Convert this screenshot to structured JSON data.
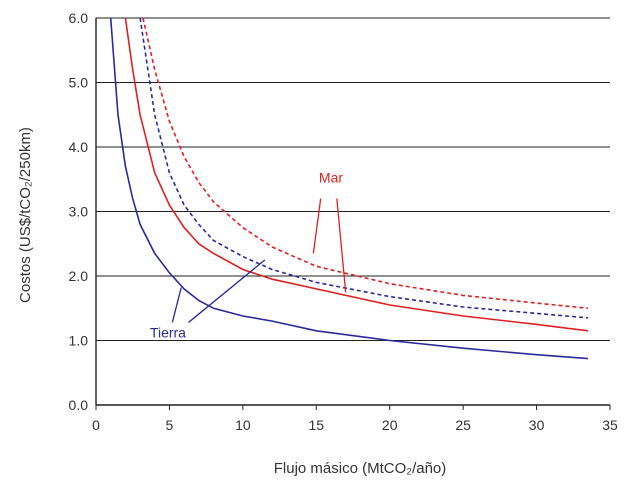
{
  "chart_data": {
    "type": "line",
    "title": "",
    "xlabel": "Flujo másico (MtCO₂/año)",
    "ylabel": "Costos (US$/tCO₂/250km)",
    "xlim": [
      0,
      35
    ],
    "ylim": [
      0,
      6.0
    ],
    "x_ticks": [
      "0",
      "5",
      "10",
      "15",
      "20",
      "25",
      "30",
      "35"
    ],
    "y_ticks": [
      "0.0",
      "1.0",
      "2.0",
      "3.0",
      "4.0",
      "5.0",
      "6.0"
    ],
    "grid": "horizontal",
    "annotations": [
      {
        "text": "Mar",
        "color": "#e02020"
      },
      {
        "text": "Tierra",
        "color": "#2a2a9a"
      }
    ],
    "series": [
      {
        "group": "Tierra",
        "style": "solid",
        "color": "#2a2a9a",
        "x": [
          1.0,
          1.5,
          2,
          2.5,
          3,
          4,
          5,
          6,
          7,
          8,
          10,
          12,
          15,
          20,
          25,
          30,
          33.5
        ],
        "y": [
          6.0,
          4.5,
          3.7,
          3.2,
          2.8,
          2.35,
          2.05,
          1.8,
          1.62,
          1.5,
          1.38,
          1.3,
          1.15,
          1.0,
          0.88,
          0.78,
          0.72
        ]
      },
      {
        "group": "Tierra",
        "style": "dashed",
        "color": "#2a2a9a",
        "x": [
          3,
          4,
          5,
          6,
          7,
          8,
          10,
          12,
          15,
          20,
          25,
          30,
          33.5
        ],
        "y": [
          6.0,
          4.5,
          3.6,
          3.1,
          2.8,
          2.55,
          2.3,
          2.1,
          1.9,
          1.68,
          1.52,
          1.42,
          1.35
        ]
      },
      {
        "group": "Mar",
        "style": "solid",
        "color": "#e02020",
        "x": [
          2,
          2.5,
          3,
          4,
          5,
          6,
          7,
          8,
          10,
          12,
          15,
          20,
          25,
          30,
          33.5
        ],
        "y": [
          6.0,
          5.2,
          4.5,
          3.6,
          3.1,
          2.75,
          2.5,
          2.35,
          2.1,
          1.95,
          1.8,
          1.55,
          1.38,
          1.25,
          1.15
        ]
      },
      {
        "group": "Mar",
        "style": "dashed",
        "color": "#e02020",
        "x": [
          3.2,
          4,
          5,
          6,
          7,
          8,
          10,
          12,
          15,
          20,
          25,
          30,
          33.5
        ],
        "y": [
          6.0,
          5.2,
          4.4,
          3.85,
          3.45,
          3.15,
          2.75,
          2.45,
          2.15,
          1.88,
          1.7,
          1.58,
          1.5
        ]
      }
    ]
  }
}
